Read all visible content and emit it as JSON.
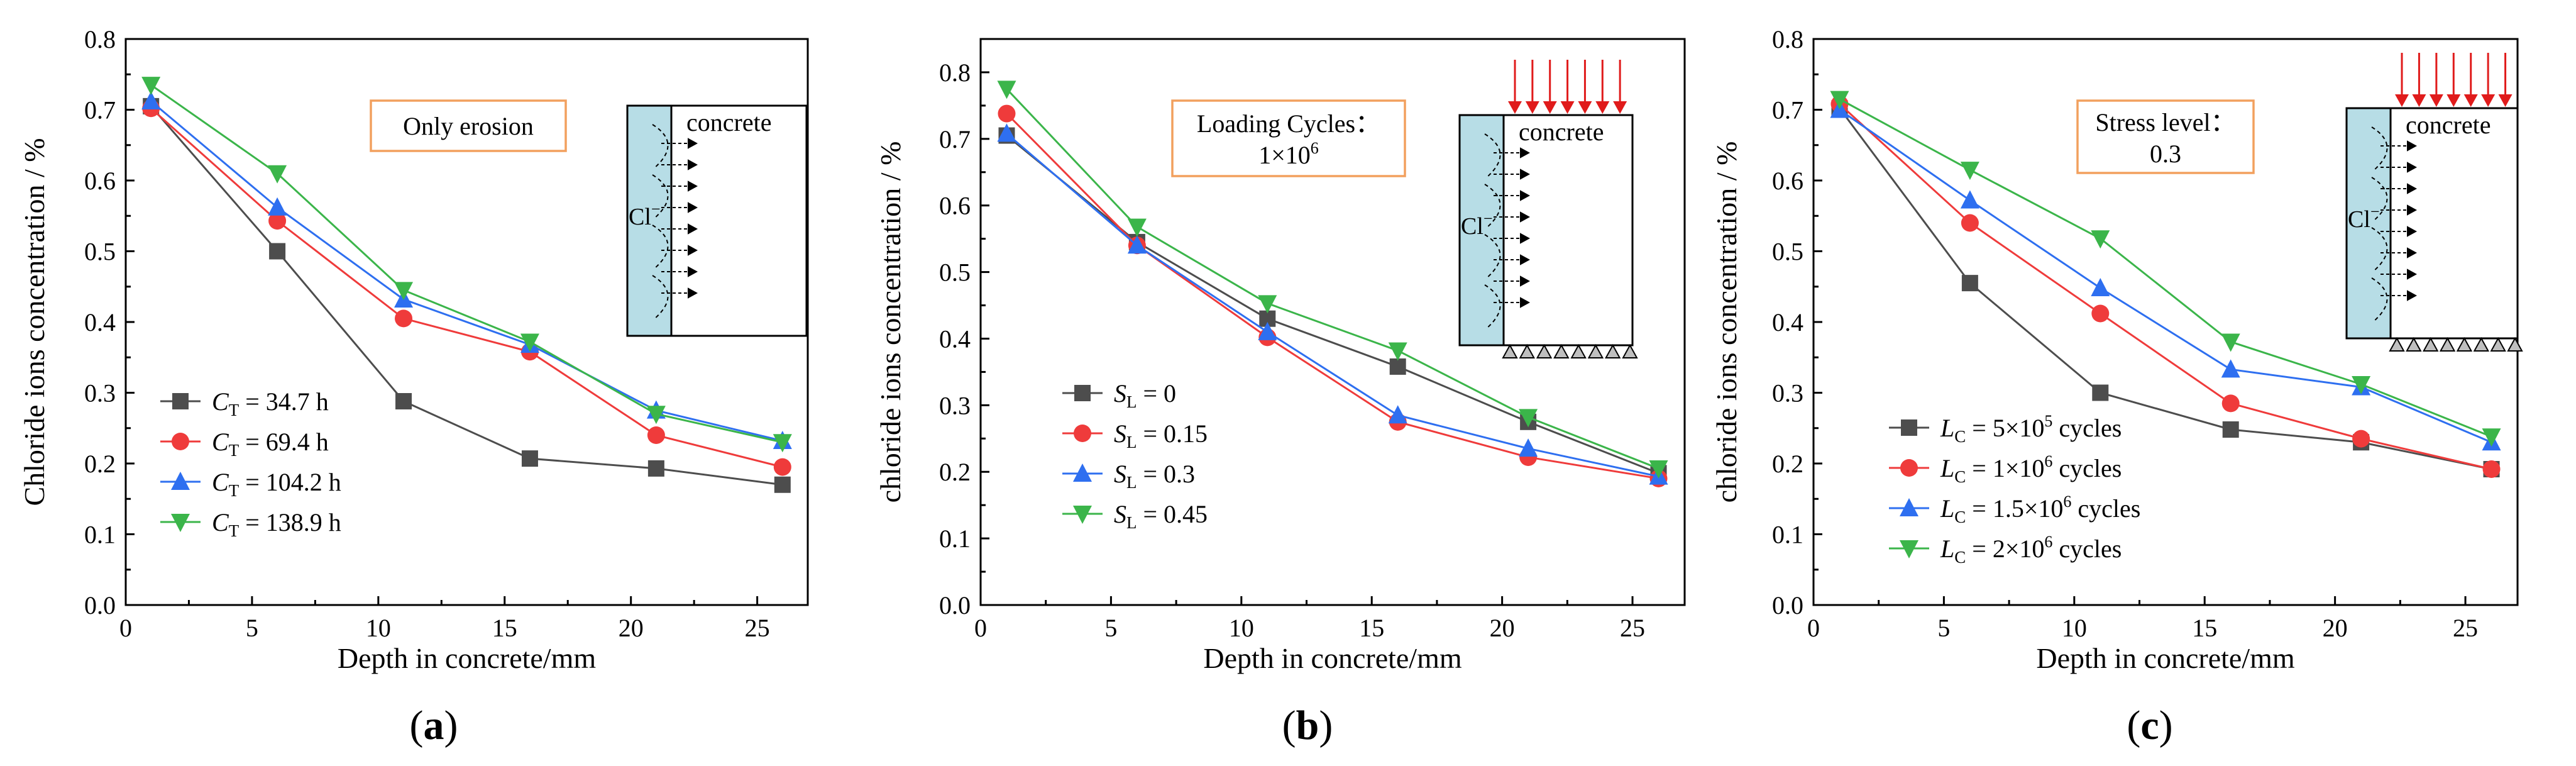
{
  "chart_data": [
    {
      "type": "line",
      "panel_label": "a",
      "ylabel": "Chloride ions concentration / %",
      "xlabel": "Depth in concrete/mm",
      "xlim": [
        0,
        27
      ],
      "ylim": [
        0,
        0.8
      ],
      "xticks": [
        0,
        5,
        10,
        15,
        20,
        25
      ],
      "yticks": [
        0.0,
        0.1,
        0.2,
        0.3,
        0.4,
        0.5,
        0.6,
        0.7,
        0.8
      ],
      "x": [
        1,
        6,
        11,
        16,
        21,
        26
      ],
      "annotation": [
        "Only erosion"
      ],
      "inset": {
        "label": "concrete",
        "ion": "Cl",
        "ion_sup": "−",
        "loaded": false
      },
      "legend_position": "bottom-left",
      "series": [
        {
          "var": "C",
          "sub": "T",
          "rest": " = 34.7 h",
          "color": "#4d4d4d",
          "marker": "square",
          "values": [
            0.705,
            0.5,
            0.288,
            0.207,
            0.193,
            0.17
          ]
        },
        {
          "var": "C",
          "sub": "T",
          "rest": " = 69.4 h",
          "color": "#ef3b3b",
          "marker": "circle",
          "values": [
            0.702,
            0.543,
            0.405,
            0.358,
            0.24,
            0.195
          ]
        },
        {
          "var": "C",
          "sub": "T",
          "rest": " = 104.2 h",
          "color": "#2e6ff0",
          "marker": "triangle-up",
          "values": [
            0.712,
            0.562,
            0.432,
            0.368,
            0.275,
            0.232
          ]
        },
        {
          "var": "C",
          "sub": "T",
          "rest": " = 138.9 h",
          "color": "#3bb54a",
          "marker": "triangle-down",
          "values": [
            0.735,
            0.61,
            0.445,
            0.372,
            0.27,
            0.23
          ]
        }
      ]
    },
    {
      "type": "line",
      "panel_label": "b",
      "ylabel": "chloride ions concentration / %",
      "xlabel": "Depth in concrete/mm",
      "xlim": [
        0,
        27
      ],
      "ylim": [
        0,
        0.85
      ],
      "xticks": [
        0,
        5,
        10,
        15,
        20,
        25
      ],
      "yticks": [
        0.0,
        0.1,
        0.2,
        0.3,
        0.4,
        0.5,
        0.6,
        0.7,
        0.8
      ],
      "x": [
        1,
        6,
        11,
        16,
        21,
        26
      ],
      "annotation": [
        "Loading Cycles：",
        "1×10",
        "6"
      ],
      "inset": {
        "label": "concrete",
        "ion": "Cl",
        "ion_sup": "−",
        "loaded": true
      },
      "legend_position": "bottom-left",
      "series": [
        {
          "var": "S",
          "sub": "L",
          "rest": " = 0",
          "color": "#4d4d4d",
          "marker": "square",
          "values": [
            0.705,
            0.545,
            0.43,
            0.358,
            0.275,
            0.198
          ]
        },
        {
          "var": "S",
          "sub": "L",
          "rest": " = 0.15",
          "color": "#ef3b3b",
          "marker": "circle",
          "values": [
            0.738,
            0.54,
            0.402,
            0.275,
            0.222,
            0.19
          ]
        },
        {
          "var": "S",
          "sub": "L",
          "rest": " = 0.3",
          "color": "#2e6ff0",
          "marker": "triangle-up",
          "values": [
            0.708,
            0.54,
            0.41,
            0.285,
            0.235,
            0.193
          ]
        },
        {
          "var": "S",
          "sub": "L",
          "rest": " = 0.45",
          "color": "#3bb54a",
          "marker": "triangle-down",
          "values": [
            0.775,
            0.568,
            0.453,
            0.382,
            0.282,
            0.205
          ]
        }
      ]
    },
    {
      "type": "line",
      "panel_label": "c",
      "ylabel": "chloride ions concentration / %",
      "xlabel": "Depth in concrete/mm",
      "xlim": [
        0,
        27
      ],
      "ylim": [
        0,
        0.8
      ],
      "xticks": [
        0,
        5,
        10,
        15,
        20,
        25
      ],
      "yticks": [
        0.0,
        0.1,
        0.2,
        0.3,
        0.4,
        0.5,
        0.6,
        0.7,
        0.8
      ],
      "x": [
        1,
        6,
        11,
        16,
        21,
        26
      ],
      "annotation": [
        "Stress level：",
        "0.3"
      ],
      "inset": {
        "label": "concrete",
        "ion": "Cl",
        "ion_sup": "−",
        "loaded": true
      },
      "legend_position": "bottom-left",
      "series": [
        {
          "var": "L",
          "sub": "C",
          "rest": " = 5×10",
          "sup": "5",
          "rest2": " cycles",
          "color": "#4d4d4d",
          "marker": "square",
          "values": [
            0.702,
            0.455,
            0.3,
            0.248,
            0.23,
            0.192
          ]
        },
        {
          "var": "L",
          "sub": "C",
          "rest": " = 1×10",
          "sup": "6",
          "rest2": " cycles",
          "color": "#ef3b3b",
          "marker": "circle",
          "values": [
            0.708,
            0.54,
            0.412,
            0.285,
            0.235,
            0.192
          ]
        },
        {
          "var": "L",
          "sub": "C",
          "rest": " = 1.5×10",
          "sup": "6",
          "rest2": " cycles",
          "color": "#2e6ff0",
          "marker": "triangle-up",
          "values": [
            0.7,
            0.572,
            0.448,
            0.333,
            0.308,
            0.23
          ]
        },
        {
          "var": "L",
          "sub": "C",
          "rest": " = 2×10",
          "sup": "6",
          "rest2": " cycles",
          "color": "#3bb54a",
          "marker": "triangle-down",
          "values": [
            0.715,
            0.615,
            0.518,
            0.372,
            0.312,
            0.238
          ]
        }
      ]
    }
  ]
}
